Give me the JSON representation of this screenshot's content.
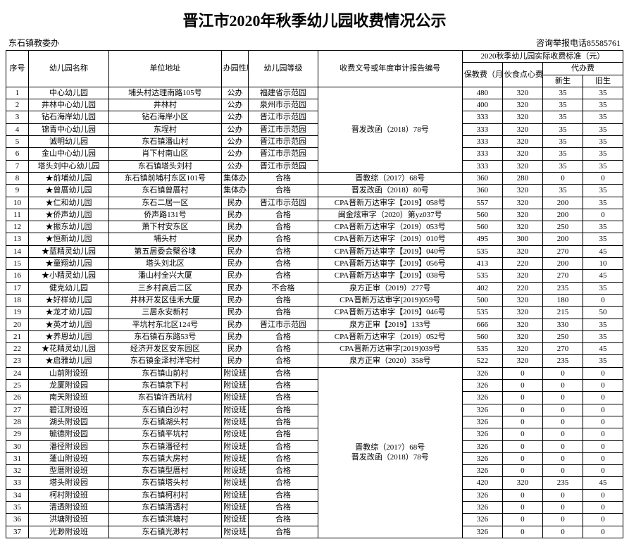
{
  "title": "晋江市2020年秋季幼儿园收费情况公示",
  "meta_left": "东石镇教委办",
  "meta_right": "咨询举报电话85585761",
  "headers": {
    "seq": "序号",
    "name": "幼儿园名称",
    "addr": "单位地址",
    "nature": "办园性质",
    "grade": "幼儿园等级",
    "doc": "收费文号或年度审计报告编号",
    "fee_group": "2020秋季幼儿园实际收费标准（元）",
    "fee_bao": "保教费（月）",
    "fee_huo": "伙食点心费（月）",
    "fee_dai": "代办费",
    "fee_new": "新生",
    "fee_old": "旧生"
  },
  "group1_doc": "晋发改函（2018）78号",
  "group2_doc": "晋教综（2017）68号\n晋发改函（2018）80号",
  "group3_doc": "晋教综（2017）68号\n晋发改函（2018）78号",
  "rows": [
    {
      "seq": "1",
      "name": "中心幼儿园",
      "addr": "埔头村达理南路105号",
      "nat": "公办",
      "grade": "福建省示范园",
      "doc": "",
      "bao": "480",
      "huo": "320",
      "new": "35",
      "old": "35"
    },
    {
      "seq": "2",
      "name": "井林中心幼儿园",
      "addr": "井林村",
      "nat": "公办",
      "grade": "泉州市示范园",
      "doc": "",
      "bao": "400",
      "huo": "320",
      "new": "35",
      "old": "35"
    },
    {
      "seq": "3",
      "name": "钻石海岸幼儿园",
      "addr": "钻石海岸小区",
      "nat": "公办",
      "grade": "晋江市示范园",
      "doc": "",
      "bao": "333",
      "huo": "320",
      "new": "35",
      "old": "35"
    },
    {
      "seq": "4",
      "name": "锦青中心幼儿园",
      "addr": "东埕村",
      "nat": "公办",
      "grade": "晋江市示范园",
      "doc": "",
      "bao": "333",
      "huo": "320",
      "new": "35",
      "old": "35"
    },
    {
      "seq": "5",
      "name": "诚明幼儿园",
      "addr": "东石镇潘山村",
      "nat": "公办",
      "grade": "晋江市示范园",
      "doc": "",
      "bao": "333",
      "huo": "320",
      "new": "35",
      "old": "35"
    },
    {
      "seq": "6",
      "name": "金山中心幼儿园",
      "addr": "肖下村南山区",
      "nat": "公办",
      "grade": "晋江市示范园",
      "doc": "",
      "bao": "333",
      "huo": "320",
      "new": "35",
      "old": "35"
    },
    {
      "seq": "7",
      "name": "塔头刘中心幼儿园",
      "addr": "东石镇塔头刘村",
      "nat": "公办",
      "grade": "晋江市示范园",
      "doc": "",
      "bao": "333",
      "huo": "320",
      "new": "35",
      "old": "35"
    },
    {
      "seq": "8",
      "name": "★前埔幼儿园",
      "addr": "东石镇前埔村东区101号",
      "nat": "集体办",
      "grade": "合格",
      "doc": "晋教综（2017）68号",
      "bao": "360",
      "huo": "280",
      "new": "0",
      "old": "0"
    },
    {
      "seq": "9",
      "name": "★曾厝幼儿园",
      "addr": "东石镇曾厝村",
      "nat": "集体办",
      "grade": "合格",
      "doc": "晋发改函（2018）80号",
      "bao": "360",
      "huo": "320",
      "new": "35",
      "old": "35"
    },
    {
      "seq": "10",
      "name": "★仁和幼儿园",
      "addr": "东石二居一区",
      "nat": "民办",
      "grade": "晋江市示范园",
      "doc": "CPA晋新万达审字【2019】058号",
      "bao": "557",
      "huo": "320",
      "new": "200",
      "old": "35"
    },
    {
      "seq": "11",
      "name": "★侨声幼儿园",
      "addr": "侨声路131号",
      "nat": "民办",
      "grade": "合格",
      "doc": "闽金炫审字（2020）第yz037号",
      "bao": "560",
      "huo": "320",
      "new": "200",
      "old": "0"
    },
    {
      "seq": "12",
      "name": "★振东幼儿园",
      "addr": "萧下村安东区",
      "nat": "民办",
      "grade": "合格",
      "doc": "CPA晋新万达审字（2019）053号",
      "bao": "560",
      "huo": "320",
      "new": "250",
      "old": "35"
    },
    {
      "seq": "13",
      "name": "★恒新幼儿园",
      "addr": "埔头村",
      "nat": "民办",
      "grade": "合格",
      "doc": "CPA晋新万达审字（2019）010号",
      "bao": "495",
      "huo": "300",
      "new": "200",
      "old": "35"
    },
    {
      "seq": "14",
      "name": "★蓝精灵幼儿园",
      "addr": "第五居委会檗谷埭",
      "nat": "民办",
      "grade": "合格",
      "doc": "CPA晋新万达审字【2019】040号",
      "bao": "535",
      "huo": "320",
      "new": "270",
      "old": "45"
    },
    {
      "seq": "15",
      "name": "★童翔幼儿园",
      "addr": "塔头刘北区",
      "nat": "民办",
      "grade": "合格",
      "doc": "CPA晋新万达审字【2019】056号",
      "bao": "413",
      "huo": "220",
      "new": "200",
      "old": "10"
    },
    {
      "seq": "16",
      "name": "★小精灵幼儿园",
      "addr": "潘山村全兴大厦",
      "nat": "民办",
      "grade": "合格",
      "doc": "CPA晋新万达审字【2019】038号",
      "bao": "535",
      "huo": "320",
      "new": "270",
      "old": "45"
    },
    {
      "seq": "17",
      "name": "健克幼儿园",
      "addr": "三乡村高后二区",
      "nat": "民办",
      "grade": "不合格",
      "doc": "泉方正审（2019）277号",
      "bao": "402",
      "huo": "220",
      "new": "235",
      "old": "35"
    },
    {
      "seq": "18",
      "name": "★好样幼儿园",
      "addr": "井林开发区佳禾大厦",
      "nat": "民办",
      "grade": "合格",
      "doc": "CPA晋新万达审字[2019]059号",
      "bao": "500",
      "huo": "320",
      "new": "180",
      "old": "0"
    },
    {
      "seq": "19",
      "name": "★龙才幼儿园",
      "addr": "三居永安新村",
      "nat": "民办",
      "grade": "合格",
      "doc": "CPA晋新万达审字【2019】046号",
      "bao": "535",
      "huo": "320",
      "new": "215",
      "old": "50"
    },
    {
      "seq": "20",
      "name": "★英才幼儿园",
      "addr": "平坑村东北区124号",
      "nat": "民办",
      "grade": "晋江市示范园",
      "doc": "泉方正审【2019】133号",
      "bao": "666",
      "huo": "320",
      "new": "330",
      "old": "35"
    },
    {
      "seq": "21",
      "name": "★养恩幼儿园",
      "addr": "东石镇石东路53号",
      "nat": "民办",
      "grade": "合格",
      "doc": "CPA晋新万达审字（2019）052号",
      "bao": "560",
      "huo": "320",
      "new": "250",
      "old": "35"
    },
    {
      "seq": "22",
      "name": "★花精灵幼儿园",
      "addr": "经济开发区安东园区",
      "nat": "民办",
      "grade": "合格",
      "doc": "CPA晋新万达审字[2019]039号",
      "bao": "535",
      "huo": "320",
      "new": "270",
      "old": "45"
    },
    {
      "seq": "23",
      "name": "★启雅幼儿园",
      "addr": "东石镇金泽村洋宅村",
      "nat": "民办",
      "grade": "合格",
      "doc": "泉方正审（2020）358号",
      "bao": "522",
      "huo": "320",
      "new": "235",
      "old": "35"
    },
    {
      "seq": "24",
      "name": "山前附设班",
      "addr": "东石镇山前村",
      "nat": "附设班",
      "grade": "合格",
      "doc": "",
      "bao": "326",
      "huo": "0",
      "new": "0",
      "old": "0"
    },
    {
      "seq": "25",
      "name": "龙厦附设园",
      "addr": "东石镇京下村",
      "nat": "附设班",
      "grade": "合格",
      "doc": "",
      "bao": "326",
      "huo": "0",
      "new": "0",
      "old": "0"
    },
    {
      "seq": "26",
      "name": "南天附设班",
      "addr": "东石镇许西坑村",
      "nat": "附设班",
      "grade": "合格",
      "doc": "",
      "bao": "326",
      "huo": "0",
      "new": "0",
      "old": "0"
    },
    {
      "seq": "27",
      "name": "碧江附设班",
      "addr": "东石镇白沙村",
      "nat": "附设班",
      "grade": "合格",
      "doc": "",
      "bao": "326",
      "huo": "0",
      "new": "0",
      "old": "0"
    },
    {
      "seq": "28",
      "name": "湖头附设园",
      "addr": "东石镇湖头村",
      "nat": "附设班",
      "grade": "合格",
      "doc": "",
      "bao": "326",
      "huo": "0",
      "new": "0",
      "old": "0"
    },
    {
      "seq": "29",
      "name": "毓德附设园",
      "addr": "东石镇平坑村",
      "nat": "附设班",
      "grade": "合格",
      "doc": "",
      "bao": "326",
      "huo": "0",
      "new": "0",
      "old": "0"
    },
    {
      "seq": "30",
      "name": "潘径附设园",
      "addr": "东石镇潘径村",
      "nat": "附设班",
      "grade": "合格",
      "doc": "",
      "bao": "326",
      "huo": "0",
      "new": "0",
      "old": "0"
    },
    {
      "seq": "31",
      "name": "蓬山附设班",
      "addr": "东石镇大房村",
      "nat": "附设班",
      "grade": "合格",
      "doc": "",
      "bao": "326",
      "huo": "0",
      "new": "0",
      "old": "0"
    },
    {
      "seq": "32",
      "name": "型厝附设班",
      "addr": "东石镇型厝村",
      "nat": "附设班",
      "grade": "合格",
      "doc": "",
      "bao": "326",
      "huo": "0",
      "new": "0",
      "old": "0"
    },
    {
      "seq": "33",
      "name": "塔头附设园",
      "addr": "东石镇塔头村",
      "nat": "附设班",
      "grade": "合格",
      "doc": "",
      "bao": "420",
      "huo": "320",
      "new": "235",
      "old": "45"
    },
    {
      "seq": "34",
      "name": "柯村附设班",
      "addr": "东石镇柯村村",
      "nat": "附设班",
      "grade": "合格",
      "doc": "",
      "bao": "326",
      "huo": "0",
      "new": "0",
      "old": "0"
    },
    {
      "seq": "35",
      "name": "清透附设班",
      "addr": "东石镇清透村",
      "nat": "附设班",
      "grade": "合格",
      "doc": "",
      "bao": "326",
      "huo": "0",
      "new": "0",
      "old": "0"
    },
    {
      "seq": "36",
      "name": "洪塘附设班",
      "addr": "东石镇洪塘村",
      "nat": "附设班",
      "grade": "合格",
      "doc": "",
      "bao": "326",
      "huo": "0",
      "new": "0",
      "old": "0"
    },
    {
      "seq": "37",
      "name": "光渺附设班",
      "addr": "东石镇光渺村",
      "nat": "附设班",
      "grade": "合格",
      "doc": "",
      "bao": "326",
      "huo": "0",
      "new": "0",
      "old": "0"
    }
  ]
}
